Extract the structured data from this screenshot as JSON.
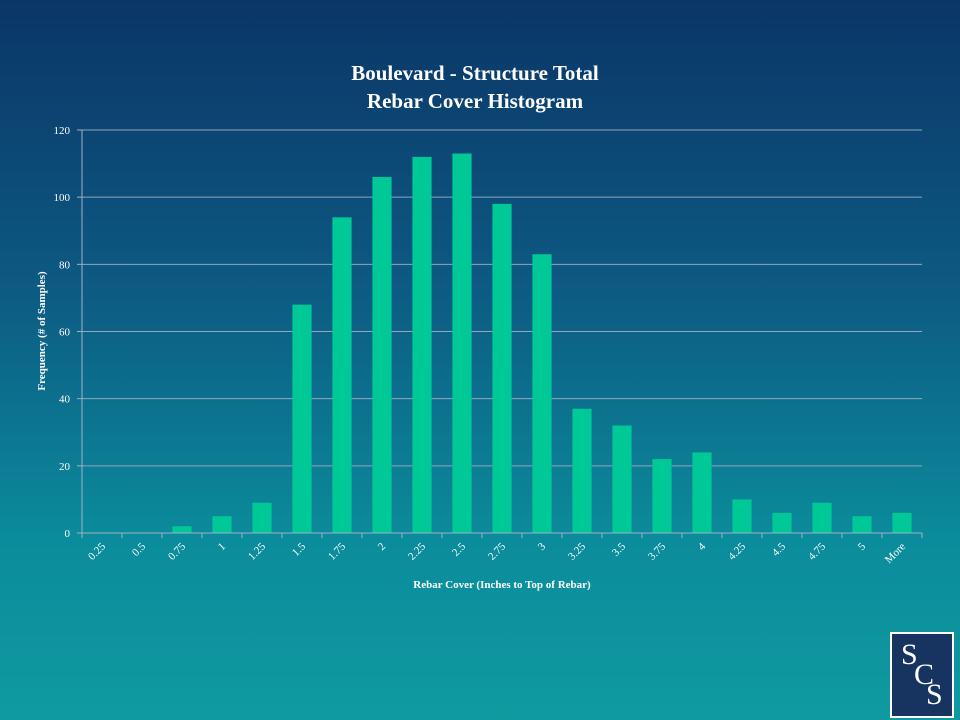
{
  "chart_data": {
    "type": "bar",
    "title_lines": [
      "Boulevard - Structure Total",
      "Rebar Cover Histogram"
    ],
    "xlabel": "Rebar Cover (Inches to Top of Rebar)",
    "ylabel": "Frequency (# of Samples)",
    "categories": [
      "0.25",
      "0.5",
      "0.75",
      "1",
      "1.25",
      "1.5",
      "1.75",
      "2",
      "2.25",
      "2.5",
      "2.75",
      "3",
      "3.25",
      "3.5",
      "3.75",
      "4",
      "4.25",
      "4.5",
      "4.75",
      "5",
      "More"
    ],
    "values": [
      0,
      0,
      2,
      5,
      9,
      68,
      94,
      106,
      112,
      113,
      98,
      83,
      37,
      32,
      22,
      24,
      10,
      6,
      9,
      5,
      6
    ],
    "ylim": [
      0,
      120
    ],
    "yticks": [
      "0",
      "20",
      "40",
      "60",
      "80",
      "100",
      "120"
    ],
    "grid": true,
    "legend": "none",
    "bar_color": "#00c896"
  },
  "logo": {
    "letters": [
      "S",
      "C",
      "S"
    ],
    "background": "#17335f",
    "color": "#ffffff"
  }
}
